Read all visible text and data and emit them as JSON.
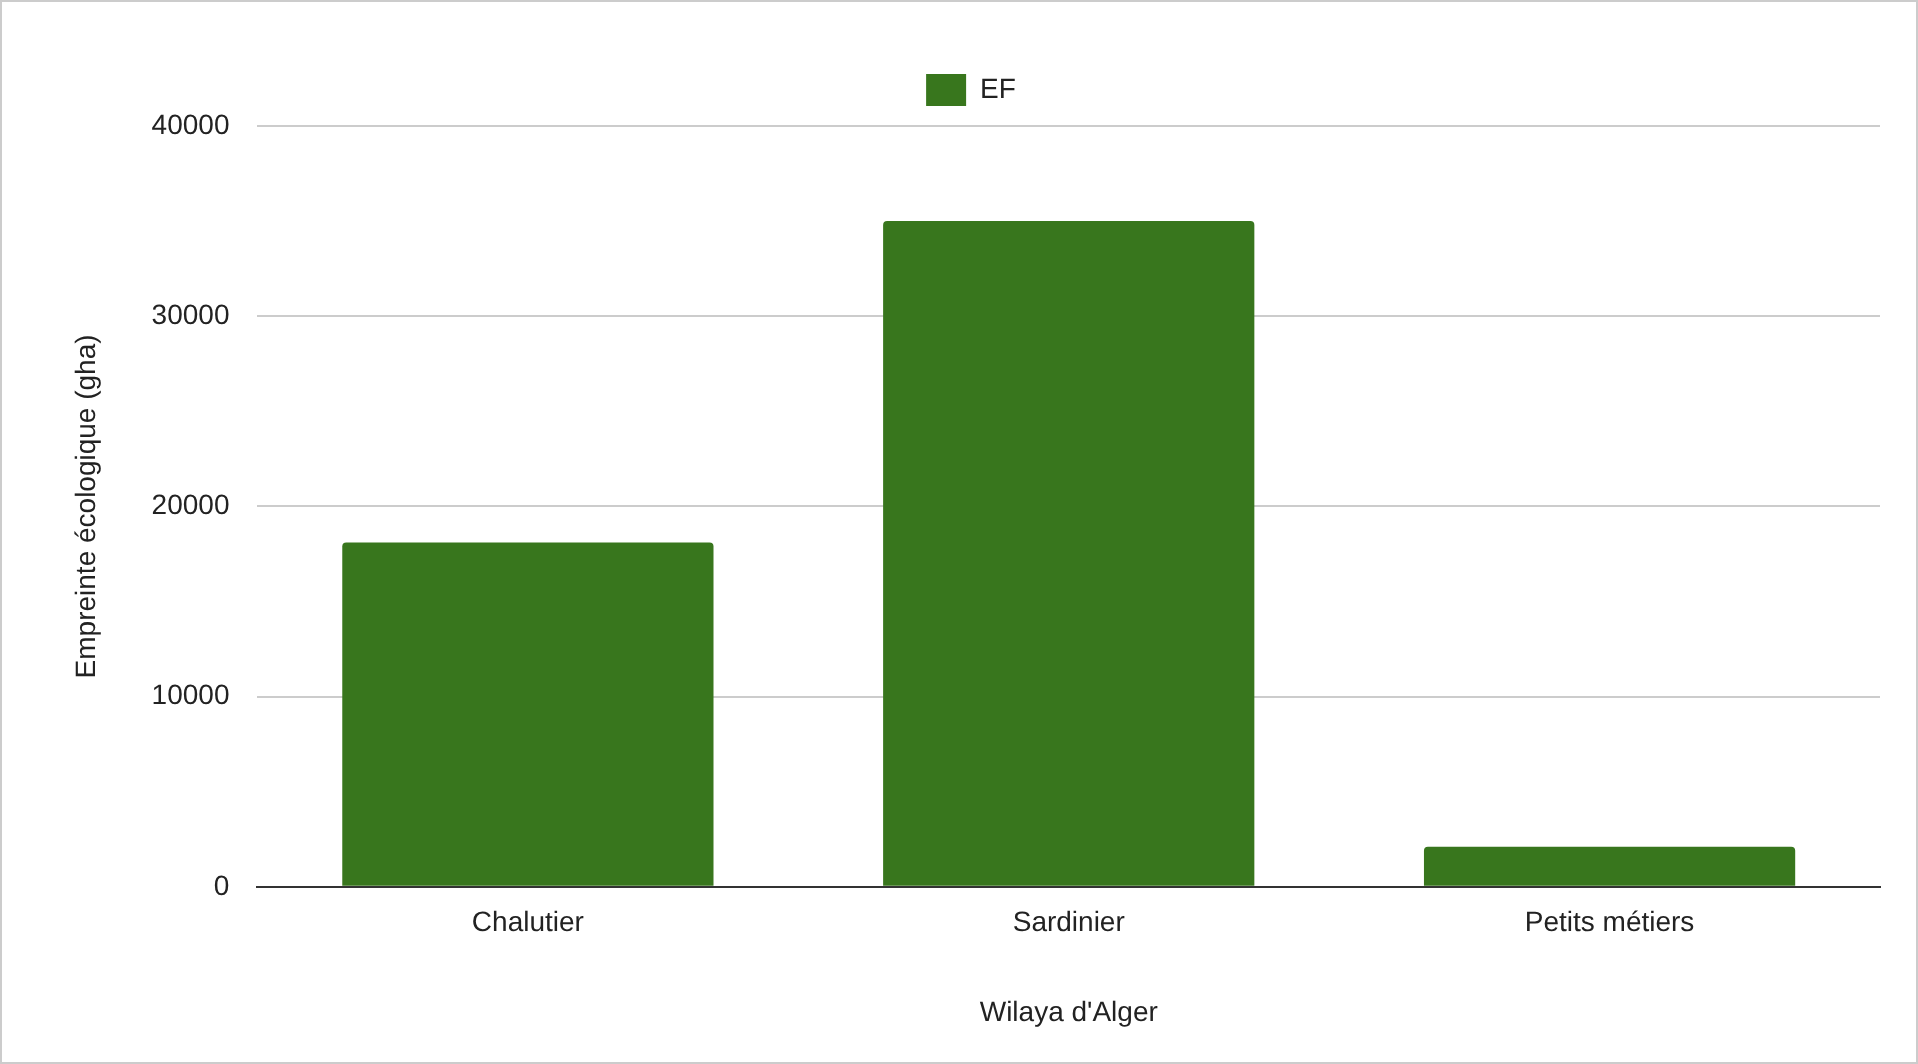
{
  "chart_data": {
    "type": "bar",
    "xlabel": "Wilaya d'Alger",
    "ylabel": "Empreinte écologique (gha)",
    "categories": [
      "Chalutier",
      "Sardinier",
      "Petits métiers"
    ],
    "series": [
      {
        "name": "EF",
        "color": "#38761d",
        "values": [
          18100,
          35000,
          2100
        ]
      }
    ],
    "ylim": [
      0,
      40000
    ],
    "yticks": [
      0,
      10000,
      20000,
      30000,
      40000
    ],
    "grid": "y",
    "legend": "top"
  }
}
